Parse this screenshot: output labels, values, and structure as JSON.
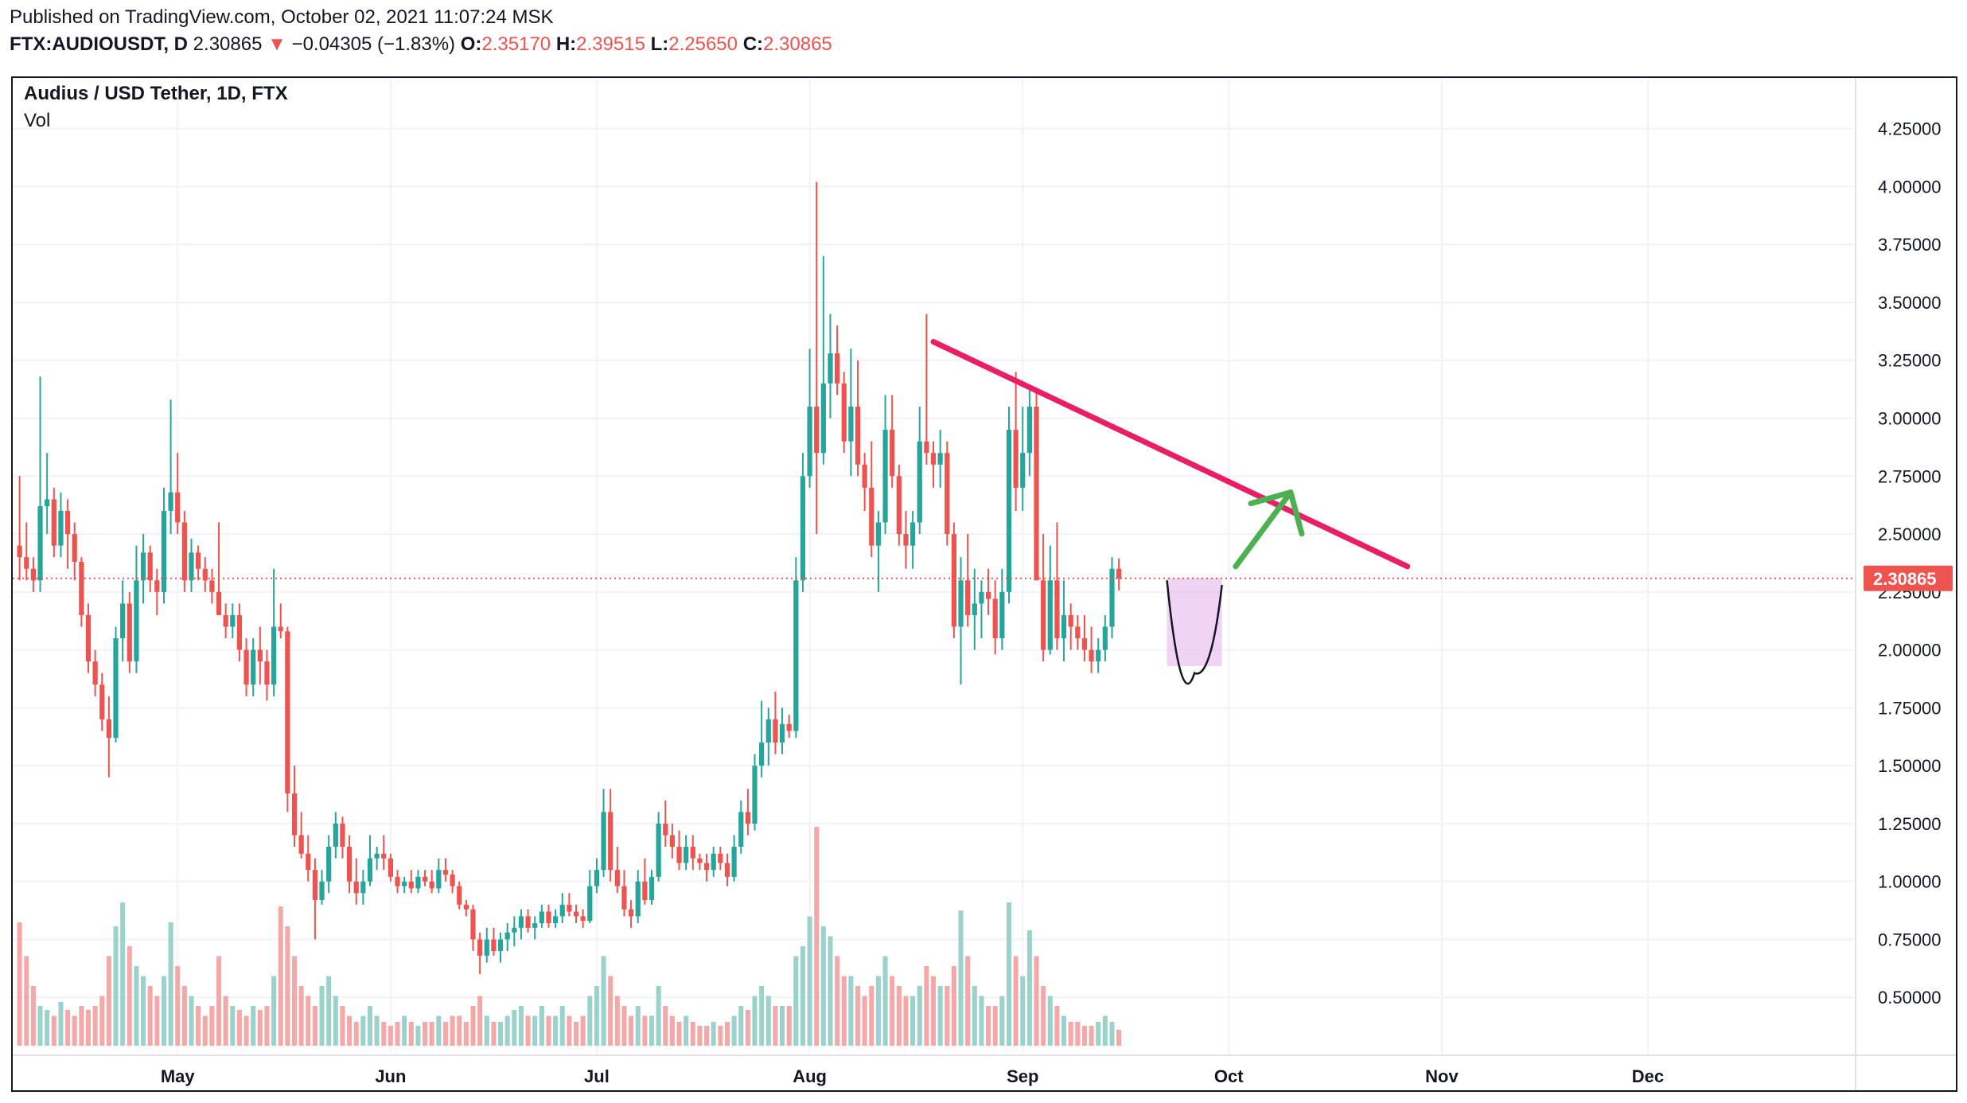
{
  "header": {
    "published": "Published on TradingView.com, October 02, 2021 11:07:24 MSK",
    "symbol": "FTX:AUDIOUSDT, D",
    "last": "2.30865",
    "change": "−0.04305 (−1.83%)",
    "o_label": "O:",
    "o_value": "2.35170",
    "h_label": "H:",
    "h_value": "2.39515",
    "l_label": "L:",
    "l_value": "2.25650",
    "c_label": "C:",
    "c_value": "2.30865"
  },
  "legend": {
    "title": "Audius / USD Tether, 1D, FTX",
    "vol": "Vol"
  },
  "colors": {
    "up": "#26a69a",
    "down": "#ef5350",
    "vol_up": "#9bd2cc",
    "vol_down": "#f4a9a8",
    "trendline": "#e91e63",
    "arrow": "#4caf50",
    "box_fill": "#e8b6ee",
    "price_tag": "#ef5350"
  },
  "chart_data": {
    "type": "candlestick",
    "ylim": [
      0.25,
      4.4
    ],
    "yticks": [
      {
        "value": 0.5,
        "label": "0.50000"
      },
      {
        "value": 0.75,
        "label": "0.75000"
      },
      {
        "value": 1.0,
        "label": "1.00000"
      },
      {
        "value": 1.25,
        "label": "1.25000"
      },
      {
        "value": 1.5,
        "label": "1.50000"
      },
      {
        "value": 1.75,
        "label": "1.75000"
      },
      {
        "value": 2.0,
        "label": "2.00000"
      },
      {
        "value": 2.25,
        "label": "2.25000"
      },
      {
        "value": 2.5,
        "label": "2.50000"
      },
      {
        "value": 2.75,
        "label": "2.75000"
      },
      {
        "value": 3.0,
        "label": "3.00000"
      },
      {
        "value": 3.25,
        "label": "3.25000"
      },
      {
        "value": 3.5,
        "label": "3.50000"
      },
      {
        "value": 3.75,
        "label": "3.75000"
      },
      {
        "value": 4.0,
        "label": "4.00000"
      },
      {
        "value": 4.25,
        "label": "4.25000"
      }
    ],
    "xrange": [
      "2021-04-07",
      "2021-12-31"
    ],
    "xticks": [
      {
        "date": "2021-05-01",
        "label": "May"
      },
      {
        "date": "2021-06-01",
        "label": "Jun"
      },
      {
        "date": "2021-07-01",
        "label": "Jul"
      },
      {
        "date": "2021-08-01",
        "label": "Aug"
      },
      {
        "date": "2021-09-01",
        "label": "Sep"
      },
      {
        "date": "2021-10-01",
        "label": "Oct"
      },
      {
        "date": "2021-11-01",
        "label": "Nov"
      },
      {
        "date": "2021-12-01",
        "label": "Dec"
      }
    ],
    "start_date": "2021-04-08",
    "candles": [
      [
        2.45,
        2.75,
        2.3,
        2.4
      ],
      [
        2.4,
        2.55,
        2.3,
        2.35
      ],
      [
        2.35,
        2.4,
        2.25,
        2.3
      ],
      [
        2.3,
        3.18,
        2.25,
        2.62
      ],
      [
        2.62,
        2.85,
        2.5,
        2.65
      ],
      [
        2.65,
        2.7,
        2.4,
        2.45
      ],
      [
        2.45,
        2.68,
        2.4,
        2.6
      ],
      [
        2.6,
        2.65,
        2.35,
        2.5
      ],
      [
        2.5,
        2.55,
        2.3,
        2.38
      ],
      [
        2.38,
        2.4,
        2.1,
        2.15
      ],
      [
        2.15,
        2.2,
        1.9,
        1.95
      ],
      [
        1.95,
        2.0,
        1.8,
        1.85
      ],
      [
        1.85,
        1.9,
        1.65,
        1.7
      ],
      [
        1.7,
        1.8,
        1.45,
        1.62
      ],
      [
        1.62,
        2.1,
        1.6,
        2.05
      ],
      [
        2.05,
        2.3,
        1.95,
        2.2
      ],
      [
        2.2,
        2.25,
        1.9,
        1.95
      ],
      [
        1.95,
        2.45,
        1.9,
        2.3
      ],
      [
        2.3,
        2.5,
        2.2,
        2.42
      ],
      [
        2.42,
        2.45,
        2.25,
        2.3
      ],
      [
        2.3,
        2.35,
        2.15,
        2.25
      ],
      [
        2.25,
        2.7,
        2.2,
        2.6
      ],
      [
        2.6,
        3.08,
        2.5,
        2.68
      ],
      [
        2.68,
        2.85,
        2.5,
        2.55
      ],
      [
        2.55,
        2.6,
        2.25,
        2.3
      ],
      [
        2.3,
        2.48,
        2.25,
        2.42
      ],
      [
        2.42,
        2.45,
        2.3,
        2.35
      ],
      [
        2.35,
        2.4,
        2.25,
        2.3
      ],
      [
        2.3,
        2.35,
        2.2,
        2.25
      ],
      [
        2.25,
        2.55,
        2.15,
        2.15
      ],
      [
        2.15,
        2.2,
        2.05,
        2.1
      ],
      [
        2.1,
        2.2,
        2.05,
        2.15
      ],
      [
        2.15,
        2.2,
        1.95,
        2.0
      ],
      [
        2.0,
        2.05,
        1.8,
        1.85
      ],
      [
        1.85,
        2.05,
        1.8,
        2.0
      ],
      [
        2.0,
        2.1,
        1.85,
        1.95
      ],
      [
        1.95,
        2.0,
        1.78,
        1.85
      ],
      [
        1.85,
        2.35,
        1.8,
        2.1
      ],
      [
        2.1,
        2.2,
        2.05,
        2.08
      ],
      [
        2.08,
        2.1,
        1.3,
        1.38
      ],
      [
        1.38,
        1.5,
        1.15,
        1.2
      ],
      [
        1.2,
        1.3,
        1.1,
        1.12
      ],
      [
        1.12,
        1.2,
        1.0,
        1.05
      ],
      [
        1.05,
        1.1,
        0.75,
        0.92
      ],
      [
        0.92,
        1.05,
        0.9,
        1.0
      ],
      [
        1.0,
        1.2,
        0.95,
        1.15
      ],
      [
        1.15,
        1.3,
        1.1,
        1.25
      ],
      [
        1.25,
        1.28,
        1.1,
        1.15
      ],
      [
        1.15,
        1.2,
        0.95,
        1.0
      ],
      [
        1.0,
        1.1,
        0.9,
        0.95
      ],
      [
        0.95,
        1.05,
        0.9,
        1.0
      ],
      [
        1.0,
        1.2,
        0.98,
        1.1
      ],
      [
        1.1,
        1.15,
        1.05,
        1.12
      ],
      [
        1.12,
        1.2,
        1.05,
        1.1
      ],
      [
        1.1,
        1.12,
        1.0,
        1.02
      ],
      [
        1.02,
        1.05,
        0.95,
        0.98
      ],
      [
        0.98,
        1.02,
        0.95,
        1.0
      ],
      [
        1.0,
        1.05,
        0.95,
        0.97
      ],
      [
        0.97,
        1.05,
        0.95,
        1.02
      ],
      [
        1.02,
        1.05,
        0.98,
        1.0
      ],
      [
        1.0,
        1.05,
        0.95,
        0.97
      ],
      [
        0.97,
        1.1,
        0.95,
        1.05
      ],
      [
        1.05,
        1.1,
        1.0,
        1.03
      ],
      [
        1.03,
        1.05,
        0.95,
        0.98
      ],
      [
        0.98,
        1.0,
        0.88,
        0.9
      ],
      [
        0.9,
        0.92,
        0.85,
        0.88
      ],
      [
        0.88,
        0.9,
        0.7,
        0.75
      ],
      [
        0.75,
        0.78,
        0.6,
        0.68
      ],
      [
        0.68,
        0.8,
        0.65,
        0.75
      ],
      [
        0.75,
        0.8,
        0.68,
        0.7
      ],
      [
        0.7,
        0.78,
        0.65,
        0.75
      ],
      [
        0.75,
        0.82,
        0.7,
        0.78
      ],
      [
        0.78,
        0.85,
        0.72,
        0.8
      ],
      [
        0.8,
        0.88,
        0.75,
        0.85
      ],
      [
        0.85,
        0.88,
        0.78,
        0.8
      ],
      [
        0.8,
        0.85,
        0.75,
        0.82
      ],
      [
        0.82,
        0.9,
        0.8,
        0.87
      ],
      [
        0.87,
        0.9,
        0.8,
        0.82
      ],
      [
        0.82,
        0.88,
        0.8,
        0.85
      ],
      [
        0.85,
        0.95,
        0.82,
        0.9
      ],
      [
        0.9,
        0.95,
        0.85,
        0.87
      ],
      [
        0.87,
        0.9,
        0.82,
        0.85
      ],
      [
        0.85,
        0.88,
        0.8,
        0.83
      ],
      [
        0.83,
        1.05,
        0.82,
        0.98
      ],
      [
        0.98,
        1.1,
        0.95,
        1.05
      ],
      [
        1.05,
        1.4,
        1.02,
        1.3
      ],
      [
        1.3,
        1.4,
        1.0,
        1.05
      ],
      [
        1.05,
        1.15,
        0.95,
        0.98
      ],
      [
        0.98,
        1.05,
        0.85,
        0.88
      ],
      [
        0.88,
        0.92,
        0.8,
        0.85
      ],
      [
        0.85,
        1.05,
        0.82,
        1.0
      ],
      [
        1.0,
        1.1,
        0.9,
        0.92
      ],
      [
        0.92,
        1.05,
        0.9,
        1.02
      ],
      [
        1.02,
        1.3,
        1.0,
        1.25
      ],
      [
        1.25,
        1.35,
        1.15,
        1.2
      ],
      [
        1.2,
        1.25,
        1.1,
        1.15
      ],
      [
        1.15,
        1.22,
        1.05,
        1.08
      ],
      [
        1.08,
        1.2,
        1.05,
        1.15
      ],
      [
        1.15,
        1.2,
        1.05,
        1.1
      ],
      [
        1.1,
        1.12,
        1.05,
        1.08
      ],
      [
        1.08,
        1.12,
        1.0,
        1.05
      ],
      [
        1.05,
        1.15,
        1.02,
        1.12
      ],
      [
        1.12,
        1.15,
        1.05,
        1.08
      ],
      [
        1.08,
        1.12,
        0.98,
        1.02
      ],
      [
        1.02,
        1.2,
        1.0,
        1.15
      ],
      [
        1.15,
        1.35,
        1.12,
        1.3
      ],
      [
        1.3,
        1.4,
        1.2,
        1.25
      ],
      [
        1.25,
        1.55,
        1.22,
        1.5
      ],
      [
        1.5,
        1.78,
        1.45,
        1.6
      ],
      [
        1.6,
        1.75,
        1.5,
        1.7
      ],
      [
        1.7,
        1.82,
        1.55,
        1.6
      ],
      [
        1.6,
        1.75,
        1.55,
        1.68
      ],
      [
        1.68,
        1.72,
        1.62,
        1.65
      ],
      [
        1.65,
        2.4,
        1.62,
        2.3
      ],
      [
        2.3,
        2.85,
        2.25,
        2.75
      ],
      [
        2.75,
        3.3,
        2.7,
        3.05
      ],
      [
        3.05,
        4.02,
        2.5,
        2.85
      ],
      [
        2.85,
        3.7,
        2.8,
        3.15
      ],
      [
        3.15,
        3.45,
        3.0,
        3.28
      ],
      [
        3.28,
        3.4,
        3.1,
        3.15
      ],
      [
        3.15,
        3.2,
        2.85,
        2.9
      ],
      [
        2.9,
        3.3,
        2.75,
        3.05
      ],
      [
        3.05,
        3.25,
        2.75,
        2.8
      ],
      [
        2.8,
        2.85,
        2.6,
        2.7
      ],
      [
        2.7,
        2.9,
        2.4,
        2.45
      ],
      [
        2.45,
        2.6,
        2.25,
        2.55
      ],
      [
        2.55,
        3.1,
        2.5,
        2.95
      ],
      [
        2.95,
        3.1,
        2.7,
        2.75
      ],
      [
        2.75,
        2.8,
        2.45,
        2.5
      ],
      [
        2.5,
        2.6,
        2.35,
        2.45
      ],
      [
        2.45,
        2.6,
        2.35,
        2.55
      ],
      [
        2.55,
        3.05,
        2.5,
        2.9
      ],
      [
        2.9,
        3.45,
        2.8,
        2.85
      ],
      [
        2.85,
        2.9,
        2.7,
        2.8
      ],
      [
        2.8,
        2.95,
        2.7,
        2.85
      ],
      [
        2.85,
        2.9,
        2.45,
        2.5
      ],
      [
        2.5,
        2.55,
        2.05,
        2.1
      ],
      [
        2.1,
        2.4,
        1.85,
        2.3
      ],
      [
        2.3,
        2.5,
        2.1,
        2.15
      ],
      [
        2.15,
        2.35,
        2.0,
        2.2
      ],
      [
        2.2,
        2.3,
        2.05,
        2.25
      ],
      [
        2.25,
        2.35,
        2.15,
        2.22
      ],
      [
        2.22,
        2.3,
        1.98,
        2.05
      ],
      [
        2.05,
        2.35,
        2.0,
        2.25
      ],
      [
        2.25,
        3.05,
        2.2,
        2.95
      ],
      [
        2.95,
        3.2,
        2.6,
        2.7
      ],
      [
        2.7,
        3.05,
        2.6,
        2.85
      ],
      [
        2.85,
        3.12,
        2.75,
        3.05
      ],
      [
        3.05,
        3.12,
        2.3,
        2.3
      ],
      [
        2.3,
        2.5,
        1.95,
        2.0
      ],
      [
        2.0,
        2.45,
        1.98,
        2.3
      ],
      [
        2.3,
        2.55,
        2.0,
        2.05
      ],
      [
        2.05,
        2.3,
        1.95,
        2.15
      ],
      [
        2.15,
        2.2,
        2.0,
        2.1
      ],
      [
        2.1,
        2.15,
        2.0,
        2.05
      ],
      [
        2.05,
        2.15,
        1.95,
        2.0
      ],
      [
        2.0,
        2.1,
        1.9,
        1.95
      ],
      [
        1.95,
        2.05,
        1.9,
        2.0
      ],
      [
        2.0,
        2.15,
        1.95,
        2.1
      ],
      [
        2.1,
        2.4,
        2.05,
        2.35
      ],
      [
        2.35,
        2.39515,
        2.2565,
        2.30865
      ]
    ],
    "volume": [
      0.62,
      0.45,
      0.3,
      0.2,
      0.18,
      0.15,
      0.22,
      0.18,
      0.15,
      0.2,
      0.18,
      0.2,
      0.25,
      0.45,
      0.6,
      0.72,
      0.5,
      0.4,
      0.35,
      0.3,
      0.25,
      0.35,
      0.62,
      0.4,
      0.3,
      0.25,
      0.2,
      0.15,
      0.2,
      0.45,
      0.25,
      0.2,
      0.18,
      0.15,
      0.2,
      0.18,
      0.2,
      0.35,
      0.7,
      0.6,
      0.45,
      0.3,
      0.25,
      0.2,
      0.3,
      0.35,
      0.25,
      0.2,
      0.15,
      0.12,
      0.15,
      0.2,
      0.15,
      0.12,
      0.1,
      0.12,
      0.15,
      0.12,
      0.1,
      0.12,
      0.12,
      0.15,
      0.12,
      0.15,
      0.15,
      0.12,
      0.2,
      0.25,
      0.15,
      0.12,
      0.12,
      0.15,
      0.18,
      0.2,
      0.15,
      0.15,
      0.2,
      0.15,
      0.15,
      0.2,
      0.15,
      0.12,
      0.15,
      0.25,
      0.3,
      0.45,
      0.35,
      0.25,
      0.2,
      0.15,
      0.2,
      0.15,
      0.15,
      0.3,
      0.2,
      0.15,
      0.12,
      0.15,
      0.12,
      0.1,
      0.1,
      0.12,
      0.1,
      0.12,
      0.15,
      0.2,
      0.18,
      0.25,
      0.3,
      0.25,
      0.2,
      0.2,
      0.2,
      0.45,
      0.5,
      0.65,
      1.1,
      0.6,
      0.55,
      0.45,
      0.35,
      0.35,
      0.3,
      0.25,
      0.3,
      0.35,
      0.45,
      0.35,
      0.3,
      0.25,
      0.25,
      0.3,
      0.4,
      0.35,
      0.3,
      0.3,
      0.4,
      0.68,
      0.45,
      0.3,
      0.25,
      0.2,
      0.2,
      0.25,
      0.72,
      0.45,
      0.35,
      0.58,
      0.45,
      0.3,
      0.25,
      0.2,
      0.15,
      0.12,
      0.12,
      0.1,
      0.1,
      0.12,
      0.15,
      0.12,
      0.08
    ],
    "vol_scale_max": 1.2,
    "last_price": 2.30865,
    "last_price_label": "2.30865",
    "annotations": {
      "trendline": {
        "from": {
          "date": "2021-08-19",
          "value": 3.33
        },
        "to": {
          "date": "2021-10-27",
          "value": 2.36
        }
      },
      "box": {
        "from_date": "2021-09-22",
        "to_date": "2021-09-30",
        "top": 2.31,
        "bottom": 1.93
      },
      "cup_curve": {
        "from": {
          "date": "2021-09-22",
          "value": 2.3
        },
        "bottom": {
          "date": "2021-09-26",
          "value": 1.9
        },
        "to": {
          "date": "2021-09-30",
          "value": 2.28
        }
      },
      "arrow": {
        "from": {
          "date": "2021-10-02",
          "value": 2.36
        },
        "to": {
          "date": "2021-10-10",
          "value": 2.68
        }
      }
    }
  }
}
